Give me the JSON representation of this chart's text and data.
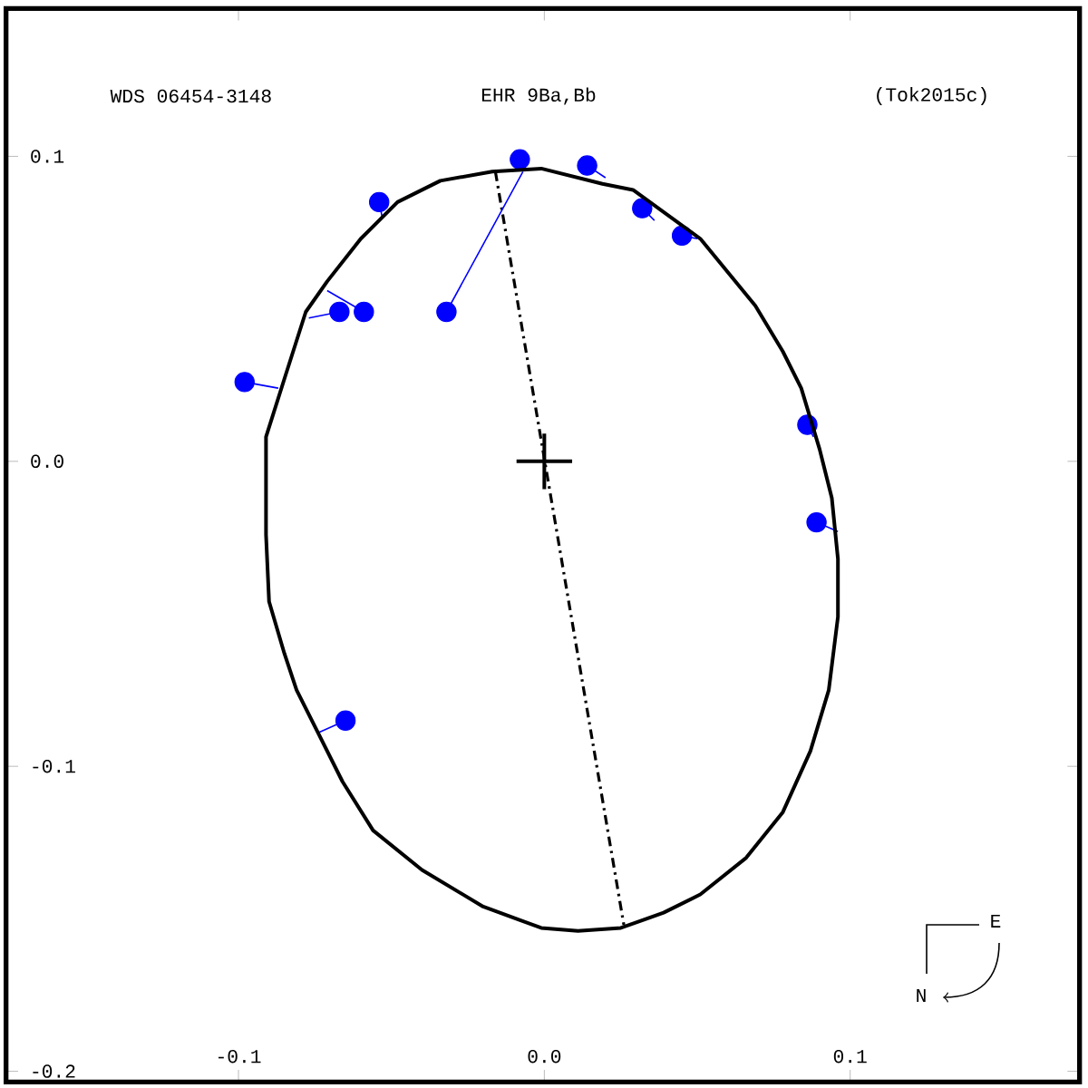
{
  "chart_data": {
    "type": "scatter",
    "title": "WDS 06454-3148",
    "subtitle": "EHR 9Ba,Bb",
    "annotations": [
      "(Tok2015c)",
      "E",
      "N"
    ],
    "xlim": [
      -0.176,
      0.175
    ],
    "ylim": [
      -0.2035,
      0.1485
    ],
    "xticks": [
      -0.1,
      {
        "value": 0,
        "label": "0.0"
      },
      0.1
    ],
    "yticks": [
      -0.2,
      -0.1,
      {
        "value": 0,
        "label": "0.0"
      },
      0.1
    ],
    "series": [
      {
        "type": "line",
        "color": "#000000",
        "marker": "none",
        "line_style": "dashed",
        "x": [
          -0.016,
          0.026
        ],
        "values": [
          0.095,
          -0.152
        ]
      },
      {
        "type": "line",
        "color": "#0000ff",
        "marker": "none",
        "line_style": "solid",
        "x": [
          0.014,
          0.02,
          null,
          0.032,
          0.036,
          null,
          0.045,
          0.05,
          null,
          -0.054,
          -0.053,
          null,
          -0.067,
          -0.077,
          null,
          -0.059,
          -0.071,
          null,
          -0.032,
          -0.007,
          null,
          -0.098,
          -0.087,
          null,
          0.086,
          0.088,
          null,
          0.089,
          0.096,
          null,
          -0.065,
          -0.074
        ],
        "values": [
          0.097,
          0.093,
          null,
          0.083,
          0.079,
          null,
          0.074,
          0.073,
          null,
          0.085,
          0.08,
          null,
          0.049,
          0.047,
          null,
          0.049,
          0.056,
          null,
          0.049,
          0.095,
          null,
          0.026,
          0.024,
          null,
          0.012,
          0.008,
          null,
          -0.02,
          -0.023,
          null,
          -0.085,
          -0.089
        ]
      },
      {
        "type": "scatter",
        "color": "#0000ff",
        "marker": "circle",
        "x": [
          -0.008,
          0.014,
          0.032,
          0.045,
          -0.054,
          -0.067,
          -0.059,
          -0.032,
          -0.098,
          0.086,
          0.089,
          -0.065
        ],
        "values": [
          0.099,
          0.097,
          0.083,
          0.074,
          0.085,
          0.049,
          0.049,
          0.049,
          0.026,
          0.012,
          -0.02,
          -0.085
        ]
      }
    ]
  }
}
